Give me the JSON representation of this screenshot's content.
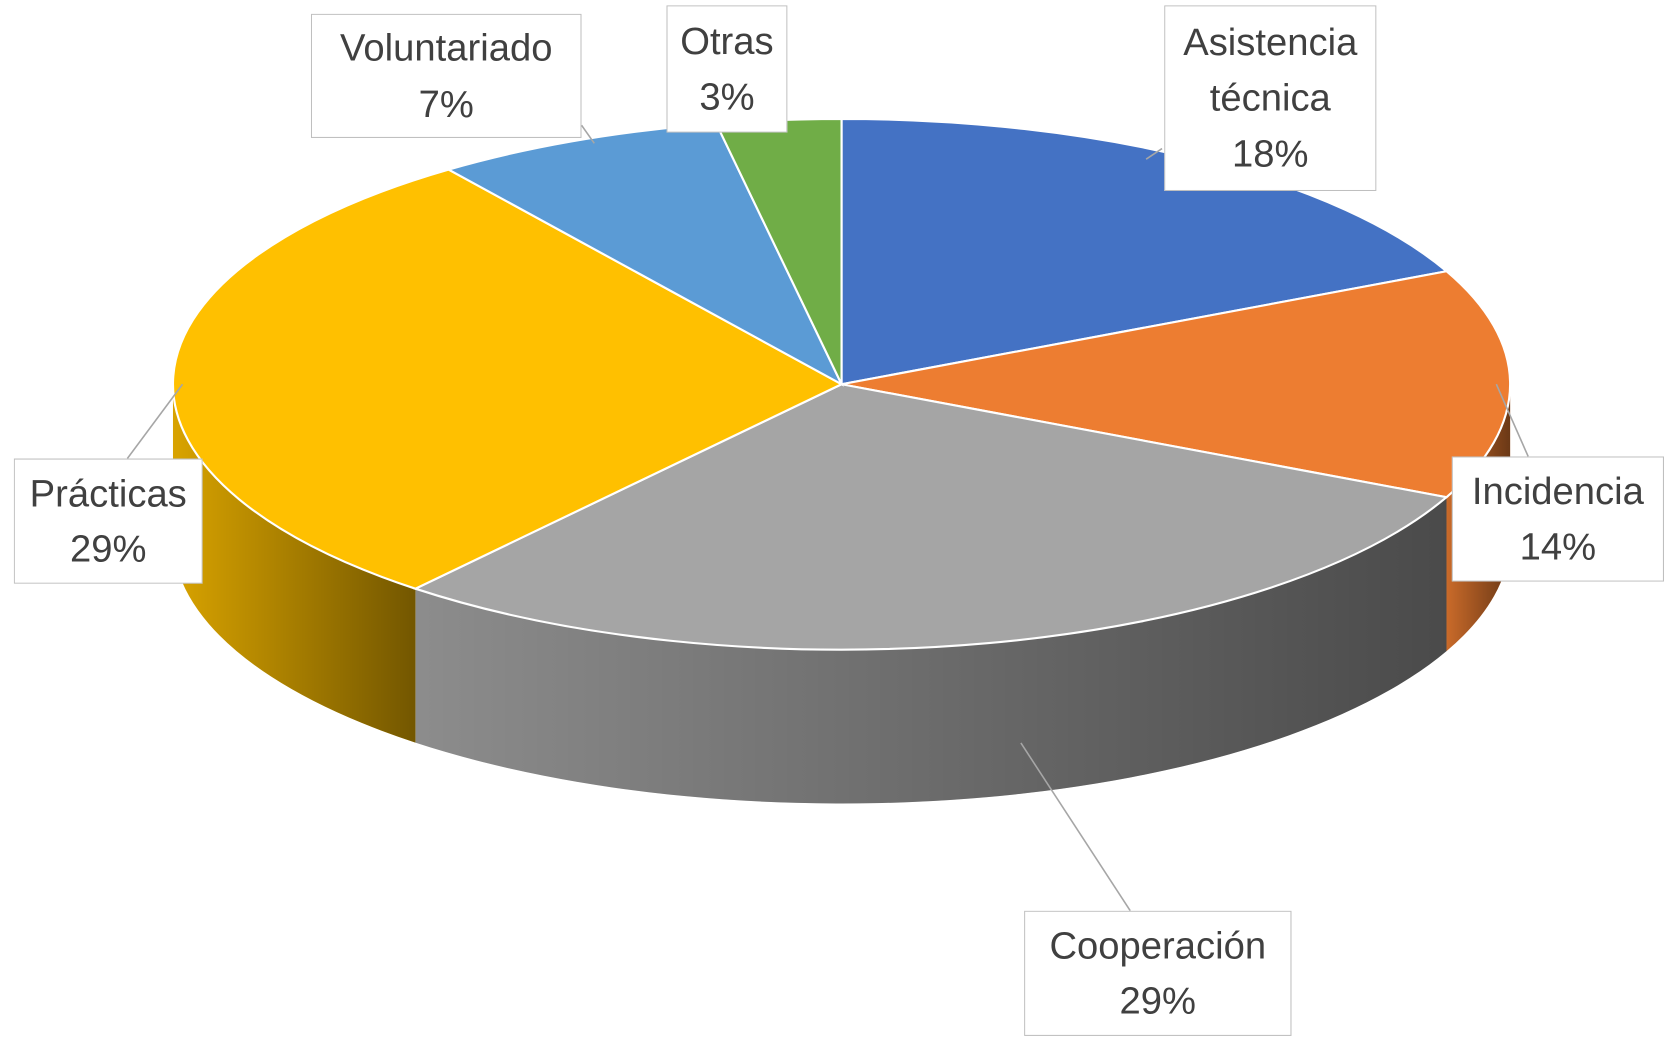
{
  "chart_data": {
    "type": "pie",
    "categories": [
      "Asistencia técnica",
      "Incidencia",
      "Cooperación",
      "Prácticas",
      "Voluntariado",
      "Otras"
    ],
    "values": [
      18,
      14,
      29,
      29,
      7,
      3
    ],
    "value_labels": [
      "18%",
      "14%",
      "29%",
      "29%",
      "7%",
      "3%"
    ],
    "colors": [
      "#4472c4",
      "#ed7d31",
      "#a5a5a5",
      "#ffc000",
      "#5b9bd5",
      "#70ad47"
    ]
  }
}
